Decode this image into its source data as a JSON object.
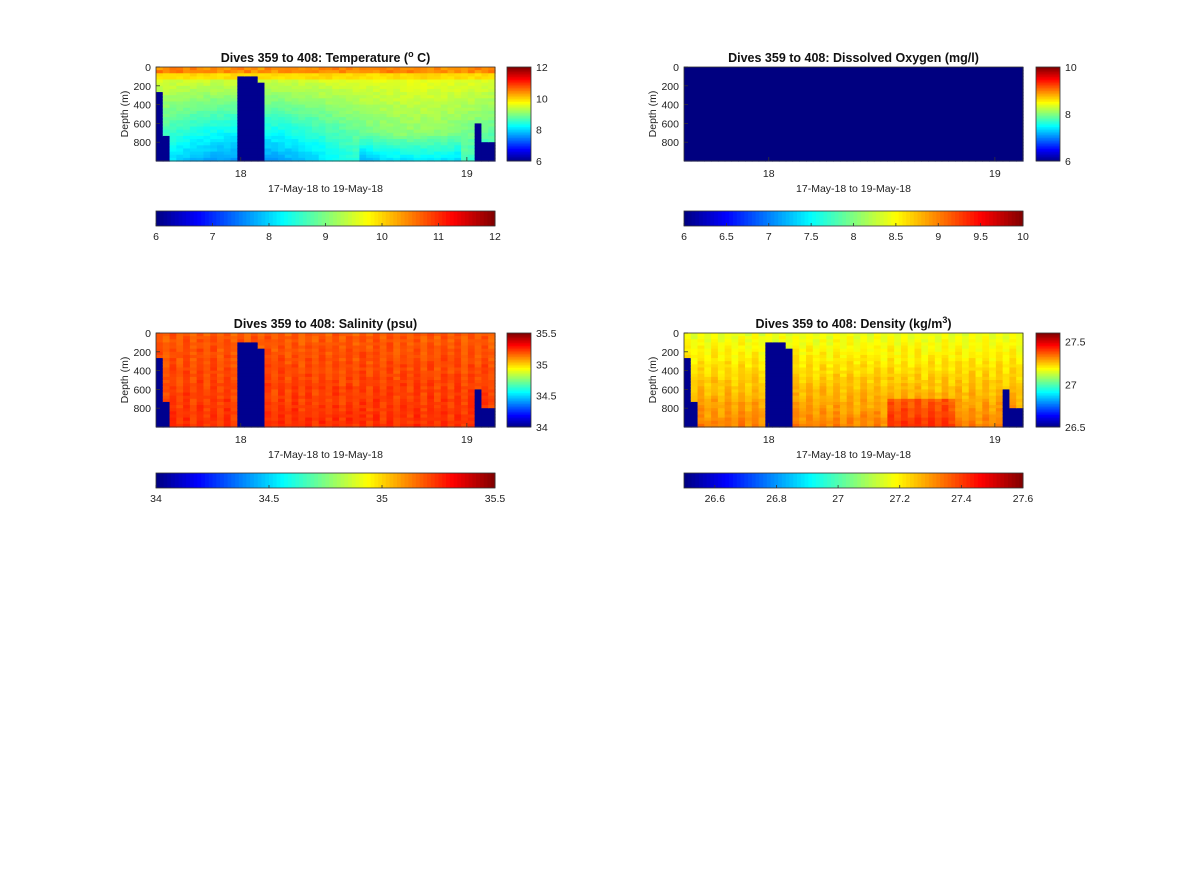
{
  "chart_data": [
    {
      "type": "heatmap",
      "id": "temperature",
      "title_main": "Dives 359 to 408: Temperature (",
      "title_sup": "o",
      "title_tail": " C)",
      "xlabel": "17-May-18 to 19-May-18",
      "ylabel": "Depth (m)",
      "xticks": [
        "18",
        "19"
      ],
      "yticks": [
        "0",
        "200",
        "400",
        "600",
        "800"
      ],
      "ytick_values": [
        0,
        200,
        400,
        600,
        800
      ],
      "ylim": [
        0,
        1000
      ],
      "colorbar_ticks": [
        "6",
        "8",
        "10",
        "12"
      ],
      "colorbar_values": [
        6,
        8,
        10,
        12
      ],
      "clim": [
        6,
        12
      ],
      "hcolorbar_ticks": [
        "6",
        "7",
        "8",
        "9",
        "10",
        "11",
        "12"
      ],
      "hcolorbar_values": [
        6,
        7,
        8,
        9,
        10,
        11,
        12
      ],
      "colormap": "jet"
    },
    {
      "type": "heatmap",
      "id": "oxygen",
      "title_main": "Dives 359 to 408: Dissolved Oxygen (mg/l)",
      "title_sup": "",
      "title_tail": "",
      "xlabel": "17-May-18 to 19-May-18",
      "ylabel": "Depth (m)",
      "xticks": [
        "18",
        "19"
      ],
      "yticks": [
        "0",
        "200",
        "400",
        "600",
        "800"
      ],
      "ytick_values": [
        0,
        200,
        400,
        600,
        800
      ],
      "ylim": [
        0,
        1000
      ],
      "colorbar_ticks": [
        "6",
        "8",
        "10"
      ],
      "colorbar_values": [
        6,
        8,
        10
      ],
      "clim": [
        6,
        10
      ],
      "hcolorbar_ticks": [
        "6",
        "6.5",
        "7",
        "7.5",
        "8",
        "8.5",
        "9",
        "9.5",
        "10"
      ],
      "hcolorbar_values": [
        6,
        6.5,
        7,
        7.5,
        8,
        8.5,
        9,
        9.5,
        10
      ],
      "colormap": "jet",
      "uniform_value": 6
    },
    {
      "type": "heatmap",
      "id": "salinity",
      "title_main": "Dives 359 to 408: Salinity (psu)",
      "title_sup": "",
      "title_tail": "",
      "xlabel": "17-May-18 to 19-May-18",
      "ylabel": "Depth (m)",
      "xticks": [
        "18",
        "19"
      ],
      "yticks": [
        "0",
        "200",
        "400",
        "600",
        "800"
      ],
      "ytick_values": [
        0,
        200,
        400,
        600,
        800
      ],
      "ylim": [
        0,
        1000
      ],
      "colorbar_ticks": [
        "34",
        "34.5",
        "35",
        "35.5"
      ],
      "colorbar_values": [
        34,
        34.5,
        35,
        35.5
      ],
      "clim": [
        34,
        35.5
      ],
      "hcolorbar_ticks": [
        "34",
        "34.5",
        "35",
        "35.5"
      ],
      "hcolorbar_values": [
        34,
        34.5,
        35,
        35.5
      ],
      "colormap": "jet"
    },
    {
      "type": "heatmap",
      "id": "density",
      "title_main": "Dives 359 to 408: Density (kg/m",
      "title_sup": "3",
      "title_tail": ")",
      "xlabel": "17-May-18 to 19-May-18",
      "ylabel": "Depth (m)",
      "xticks": [
        "18",
        "19"
      ],
      "yticks": [
        "0",
        "200",
        "400",
        "600",
        "800"
      ],
      "ytick_values": [
        0,
        200,
        400,
        600,
        800
      ],
      "ylim": [
        0,
        1000
      ],
      "colorbar_ticks": [
        "26.5",
        "27",
        "27.5"
      ],
      "colorbar_values": [
        26.5,
        27,
        27.5
      ],
      "clim": [
        26.5,
        27.6
      ],
      "hcolorbar_ticks": [
        "26.6",
        "26.8",
        "27",
        "27.2",
        "27.4",
        "27.6"
      ],
      "hcolorbar_values": [
        26.6,
        26.8,
        27,
        27.2,
        27.4,
        27.6
      ],
      "colormap": "jet"
    }
  ]
}
